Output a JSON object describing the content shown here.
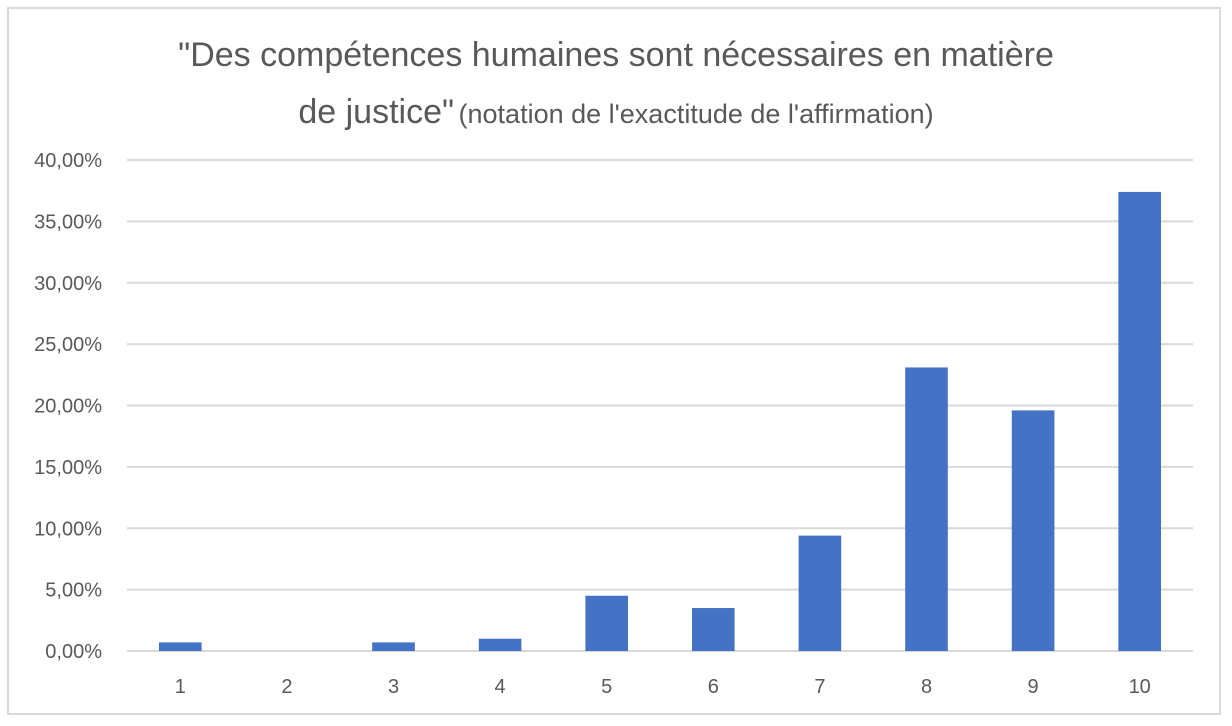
{
  "chart_data": {
    "type": "bar",
    "title_main_line1": "\"Des compétences humaines sont nécessaires en matière",
    "title_main_line2": "de justice\"",
    "title_sub": "(notation de l'exactitude de l'affirmation)",
    "xlabel": "",
    "ylabel": "",
    "categories": [
      "1",
      "2",
      "3",
      "4",
      "5",
      "6",
      "7",
      "8",
      "9",
      "10"
    ],
    "values": [
      0.7,
      0.0,
      0.7,
      1.0,
      4.5,
      3.5,
      9.4,
      23.1,
      19.6,
      37.4
    ],
    "ylim": [
      0,
      40
    ],
    "yticks": [
      {
        "value": 0,
        "label": "0,00%"
      },
      {
        "value": 5,
        "label": "5,00%"
      },
      {
        "value": 10,
        "label": "10,00%"
      },
      {
        "value": 15,
        "label": "15,00%"
      },
      {
        "value": 20,
        "label": "20,00%"
      },
      {
        "value": 25,
        "label": "25,00%"
      },
      {
        "value": 30,
        "label": "30,00%"
      },
      {
        "value": 35,
        "label": "35,00%"
      },
      {
        "value": 40,
        "label": "40,00%"
      }
    ],
    "grid": true,
    "legend": "none",
    "colors": {
      "bar": "#4472c4",
      "grid": "#d9d9d9",
      "text": "#595959"
    }
  }
}
